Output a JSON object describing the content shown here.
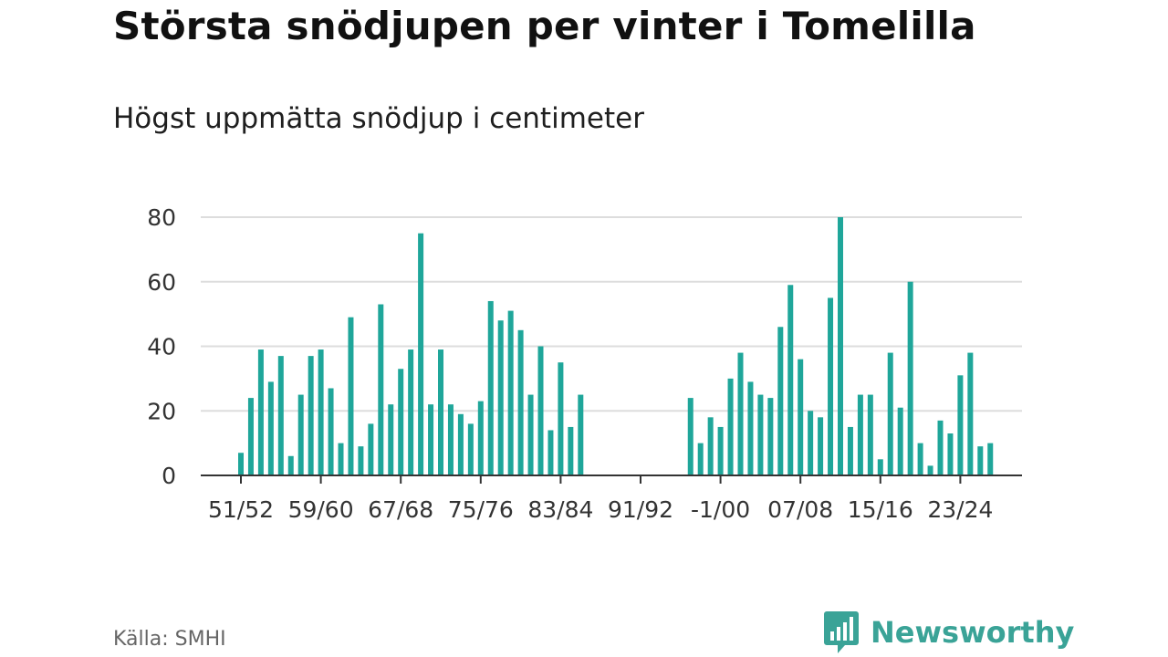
{
  "title": "Största snödjupen per vinter i Tomelilla",
  "subtitle": "Högst uppmätta snödjup i centimeter",
  "source": "Källa: SMHI",
  "brand": "Newsworthy",
  "colors": {
    "bar": "#1fa69a",
    "grid": "#dddddd",
    "axis": "#333333",
    "brand": "#3aa397"
  },
  "chart_data": {
    "type": "bar",
    "title": "Största snödjupen per vinter i Tomelilla",
    "subtitle": "Högst uppmätta snödjup i centimeter",
    "xlabel": "",
    "ylabel": "",
    "ylim": [
      0,
      80
    ],
    "yticks": [
      0,
      20,
      40,
      60,
      80
    ],
    "grid": true,
    "xticks": [
      {
        "index": 0,
        "label": "51/52"
      },
      {
        "index": 8,
        "label": "59/60"
      },
      {
        "index": 16,
        "label": "67/68"
      },
      {
        "index": 24,
        "label": "75/76"
      },
      {
        "index": 32,
        "label": "83/84"
      },
      {
        "index": 40,
        "label": "91/92"
      },
      {
        "index": 48,
        "label": "-1/00"
      },
      {
        "index": 56,
        "label": "07/08"
      },
      {
        "index": 64,
        "label": "15/16"
      },
      {
        "index": 72,
        "label": "23/24"
      }
    ],
    "values": [
      7,
      24,
      39,
      29,
      37,
      6,
      25,
      37,
      39,
      27,
      10,
      49,
      9,
      16,
      53,
      22,
      33,
      39,
      75,
      22,
      39,
      22,
      19,
      16,
      23,
      54,
      48,
      51,
      45,
      25,
      40,
      14,
      35,
      15,
      25,
      null,
      null,
      null,
      null,
      null,
      null,
      null,
      null,
      null,
      null,
      24,
      10,
      18,
      15,
      30,
      38,
      29,
      25,
      24,
      46,
      59,
      36,
      20,
      18,
      55,
      80,
      15,
      25,
      25,
      5,
      38,
      21,
      60,
      10,
      3,
      17,
      13,
      31,
      38,
      9,
      10
    ]
  }
}
